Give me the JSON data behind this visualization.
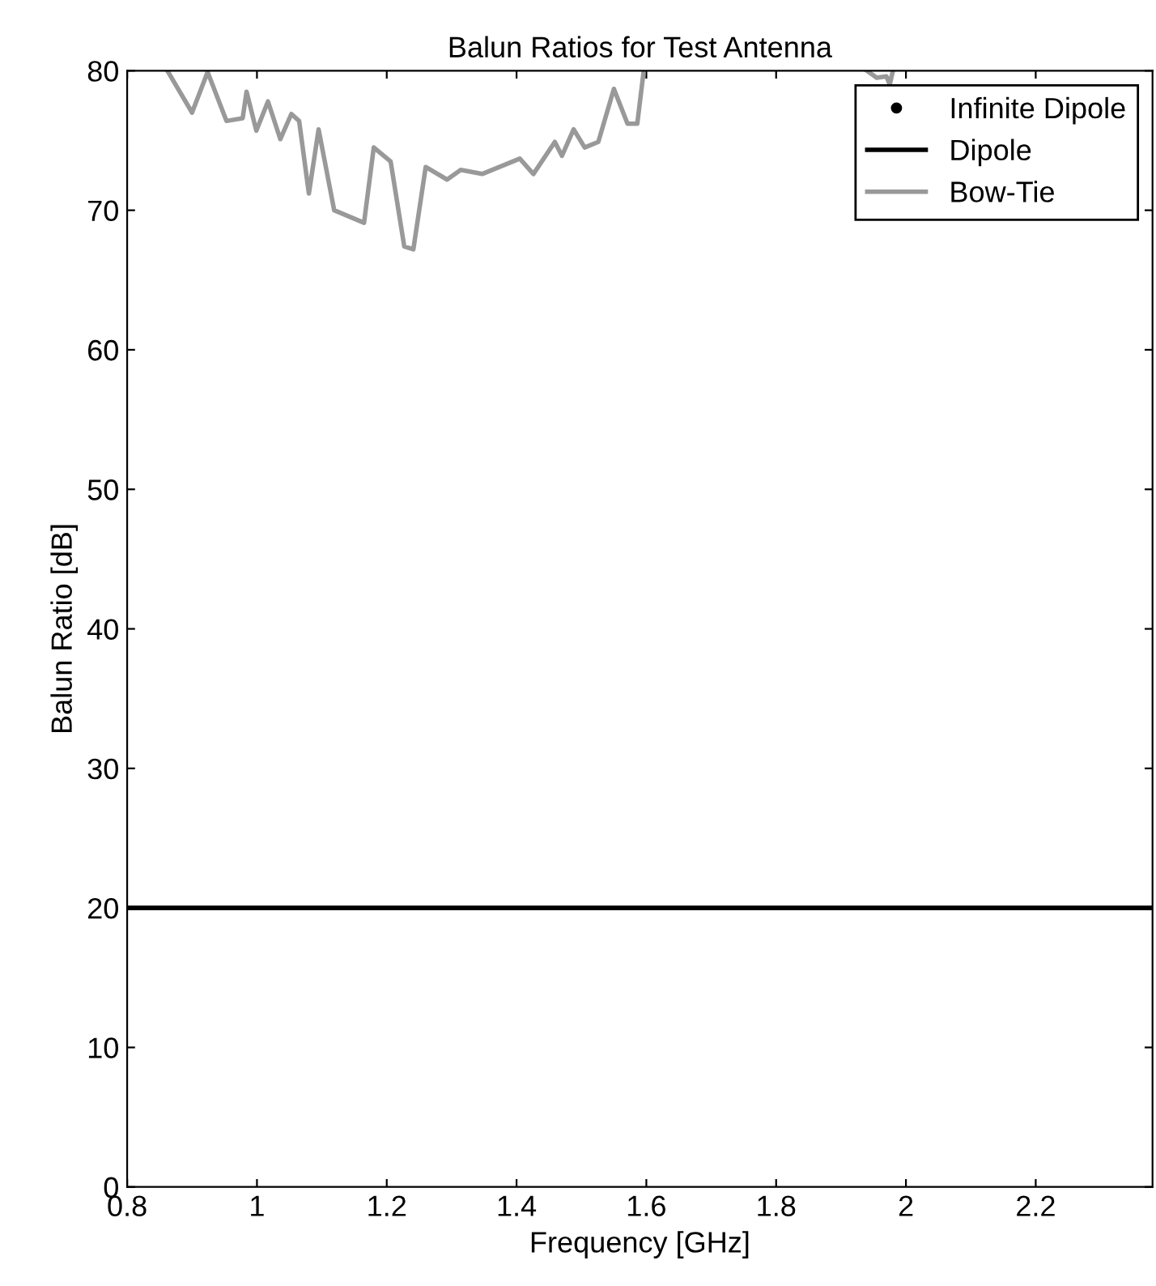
{
  "chart_data": {
    "type": "line",
    "title": "Balun Ratios for Test Antenna",
    "xlabel": "Frequency [GHz]",
    "ylabel": "Balun Ratio [dB]",
    "xlim": [
      0.8,
      2.38
    ],
    "ylim": [
      0,
      80
    ],
    "xticks": [
      0.8,
      1,
      1.2,
      1.4,
      1.6,
      1.8,
      2,
      2.2
    ],
    "yticks": [
      0,
      10,
      20,
      30,
      40,
      50,
      60,
      70,
      80
    ],
    "grid": false,
    "legend": "top right",
    "series": [
      {
        "name": "Infinite Dipole",
        "type": "scatter",
        "marker": "circle",
        "color": "#000000"
      },
      {
        "name": "Dipole",
        "line_style": "solid",
        "color": "#000000",
        "x": [
          0.8,
          2.38
        ],
        "values": [
          20,
          20
        ]
      },
      {
        "name": "Bow-Tie",
        "line_style": "solid",
        "color": "#999999",
        "x": [
          0.862,
          0.9,
          0.924,
          0.953,
          0.978,
          0.984,
          0.999,
          1.017,
          1.036,
          1.053,
          1.065,
          1.08,
          1.095,
          1.119,
          1.165,
          1.18,
          1.206,
          1.227,
          1.241,
          1.26,
          1.293,
          1.314,
          1.347,
          1.405,
          1.426,
          1.459,
          1.47,
          1.488,
          1.505,
          1.526,
          1.55,
          1.571,
          1.586,
          1.596,
          1.62,
          1.94,
          1.955,
          1.97,
          1.975,
          1.98
        ],
        "values": [
          80,
          77.0,
          79.9,
          76.4,
          76.6,
          78.5,
          75.7,
          77.8,
          75.1,
          76.9,
          76.4,
          71.2,
          75.8,
          70.0,
          69.1,
          74.5,
          73.5,
          67.4,
          67.2,
          73.1,
          72.2,
          72.9,
          72.6,
          73.7,
          72.6,
          74.9,
          73.9,
          75.8,
          74.5,
          74.9,
          78.7,
          76.2,
          76.2,
          80,
          null,
          80,
          79.5,
          79.6,
          79.0,
          80
        ]
      }
    ]
  }
}
